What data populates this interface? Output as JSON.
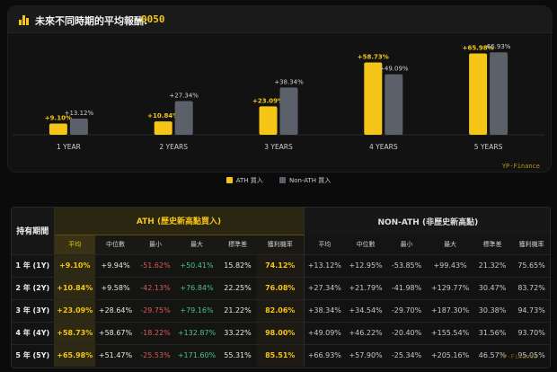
{
  "header": {
    "title": "未來不同時期的平均報酬:",
    "code": "0050"
  },
  "colors": {
    "ath": "#f5c518",
    "non_ath": "#5b606a",
    "positive": "#4cc38a",
    "negative": "#e0575b"
  },
  "chart_data": {
    "type": "bar",
    "categories": [
      "1 YEAR",
      "2 YEARS",
      "3 YEARS",
      "4 YEARS",
      "5 YEARS"
    ],
    "series": [
      {
        "name": "ATH 買入",
        "values": [
          9.1,
          10.84,
          23.09,
          58.73,
          65.98
        ],
        "labels": [
          "+9.10%",
          "+10.84%",
          "+23.09%",
          "+58.73%",
          "+65.98%"
        ]
      },
      {
        "name": "Non-ATH 買入",
        "values": [
          13.12,
          27.34,
          38.34,
          49.09,
          66.93
        ],
        "labels": [
          "+13.12%",
          "+27.34%",
          "+38.34%",
          "+49.09%",
          "66.93%"
        ]
      }
    ],
    "ylim": [
      0,
      70
    ],
    "grid": false,
    "legend_position": "bottom-center",
    "brand": "YP-Finance"
  },
  "table": {
    "period_header": "持有期間",
    "ath_header": "ATH (歷史新高點買入)",
    "non_ath_header": "NON-ATH (非歷史新高點)",
    "sub_columns": [
      "平均",
      "中位數",
      "最小",
      "最大",
      "標準差",
      "獲利機率"
    ],
    "rows": [
      {
        "label": "1 年 (1Y)",
        "ath": [
          "+9.10%",
          "+9.94%",
          "-51.62%",
          "+50.41%",
          "15.82%",
          "74.12%"
        ],
        "non": [
          "+13.12%",
          "+12.95%",
          "-53.85%",
          "+99.43%",
          "21.32%",
          "75.65%"
        ]
      },
      {
        "label": "2 年 (2Y)",
        "ath": [
          "+10.84%",
          "+9.58%",
          "-42.13%",
          "+76.84%",
          "22.25%",
          "76.08%"
        ],
        "non": [
          "+27.34%",
          "+21.79%",
          "-41.98%",
          "+129.77%",
          "30.47%",
          "83.72%"
        ]
      },
      {
        "label": "3 年 (3Y)",
        "ath": [
          "+23.09%",
          "+28.64%",
          "-29.75%",
          "+79.16%",
          "21.22%",
          "82.06%"
        ],
        "non": [
          "+38.34%",
          "+34.54%",
          "-29.70%",
          "+187.30%",
          "30.38%",
          "94.73%"
        ]
      },
      {
        "label": "4 年 (4Y)",
        "ath": [
          "+58.73%",
          "+58.67%",
          "-18.22%",
          "+132.87%",
          "33.22%",
          "98.00%"
        ],
        "non": [
          "+49.09%",
          "+46.22%",
          "-20.40%",
          "+155.54%",
          "31.56%",
          "93.70%"
        ]
      },
      {
        "label": "5 年 (5Y)",
        "ath": [
          "+65.98%",
          "+51.47%",
          "-25.53%",
          "+171.60%",
          "55.31%",
          "85.51%"
        ],
        "non": [
          "+66.93%",
          "+57.90%",
          "-25.34%",
          "+205.16%",
          "46.57%",
          "95.05%"
        ]
      }
    ],
    "watermark": "YP-Finance"
  }
}
